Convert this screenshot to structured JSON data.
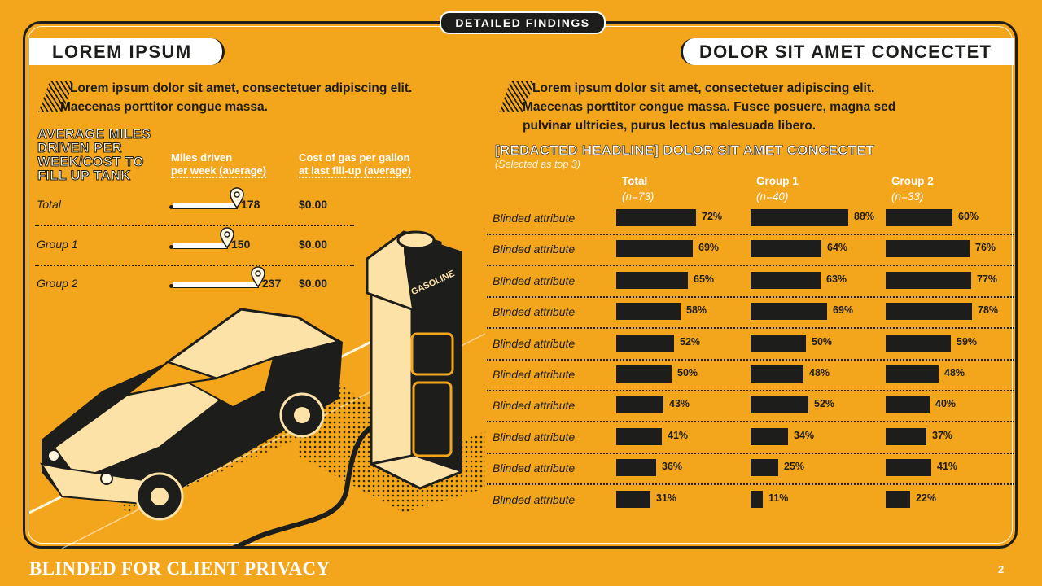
{
  "header": {
    "pill": "DETAILED FINDINGS",
    "left_tab": "LOREM IPSUM",
    "right_tab": "DOLOR SIT AMET CONCECTET"
  },
  "left": {
    "intro": "Lorem ipsum dolor sit amet, consectetuer adipiscing elit. Maecenas porttitor congue massa.",
    "panel_title": "AVERAGE MILES DRIVEN PER WEEK/COST TO FILL UP TANK",
    "col_miles": [
      "Miles driven",
      "per week (average)"
    ],
    "col_cost": [
      "Cost of gas per gallon",
      "at last fill-up (average)"
    ],
    "rows": [
      {
        "label": "Total",
        "miles": 178,
        "miles_text": "178",
        "cost": "$0.00"
      },
      {
        "label": "Group 1",
        "miles": 150,
        "miles_text": "150",
        "cost": "$0.00"
      },
      {
        "label": "Group 2",
        "miles": 237,
        "miles_text": "237",
        "cost": "$0.00"
      }
    ],
    "pump_label": "GASOLINE"
  },
  "right": {
    "intro": "Lorem ipsum dolor sit amet, consectetuer adipiscing elit. Maecenas porttitor congue massa. Fusce posuere, magna sed pulvinar ultricies, purus lectus malesuada libero.",
    "chart_title": "[REDACTED HEADLINE] DOLOR SIT AMET CONCECTET",
    "chart_subtitle": "(Selected as top 3)"
  },
  "chart_data": {
    "type": "bar",
    "orientation": "horizontal",
    "title": "[REDACTED HEADLINE] DOLOR SIT AMET CONCECTET",
    "subtitle": "(Selected as top 3)",
    "categories": [
      "Blinded attribute",
      "Blinded attribute",
      "Blinded attribute",
      "Blinded attribute",
      "Blinded attribute",
      "Blinded attribute",
      "Blinded attribute",
      "Blinded attribute",
      "Blinded attribute",
      "Blinded attribute"
    ],
    "series": [
      {
        "name": "Total",
        "n": "(n=73)",
        "values": [
          72,
          69,
          65,
          58,
          52,
          50,
          43,
          41,
          36,
          31
        ],
        "labels": [
          "72%",
          "69%",
          "65%",
          "58%",
          "52%",
          "50%",
          "43%",
          "41%",
          "36%",
          "31%"
        ]
      },
      {
        "name": "Group 1",
        "n": "(n=40)",
        "values": [
          88,
          64,
          63,
          69,
          50,
          48,
          52,
          34,
          25,
          11
        ],
        "labels": [
          "88%",
          "64%",
          "63%",
          "69%",
          "50%",
          "48%",
          "52%",
          "34%",
          "25%",
          "11%"
        ]
      },
      {
        "name": "Group 2",
        "n": "(n=33)",
        "values": [
          60,
          76,
          77,
          78,
          59,
          48,
          40,
          37,
          41,
          22
        ],
        "labels": [
          "60%",
          "76%",
          "77%",
          "78%",
          "59%",
          "48%",
          "40%",
          "37%",
          "41%",
          "22%"
        ]
      }
    ],
    "ylim": [
      0,
      100
    ]
  },
  "footer": {
    "text": "BLINDED FOR CLIENT PRIVACY",
    "page": "2"
  },
  "colors": {
    "background": "#F3A51B",
    "ink": "#1d1d1b",
    "cream": "#fff7e0"
  }
}
